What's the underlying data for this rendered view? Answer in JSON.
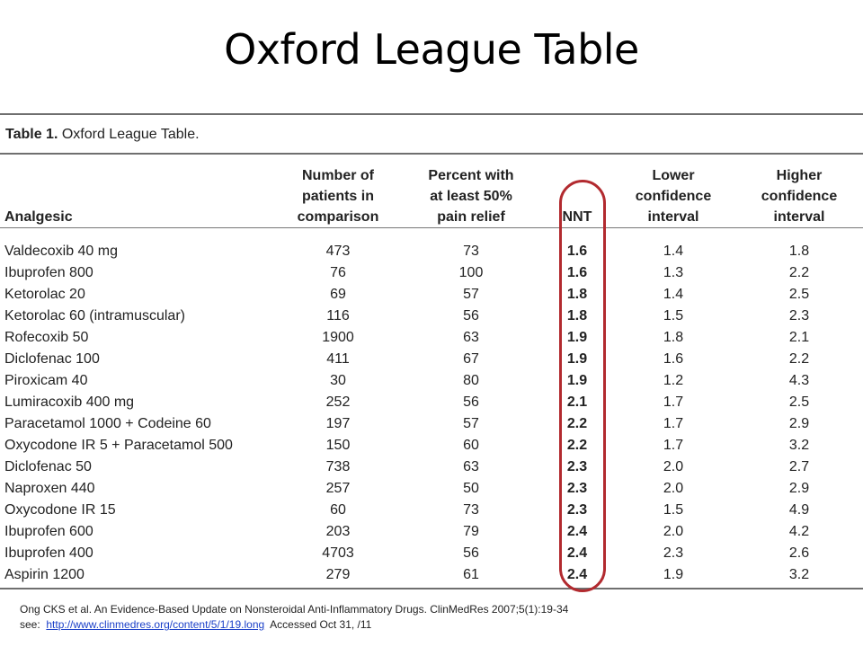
{
  "slide": {
    "title": "Oxford League Table"
  },
  "table": {
    "caption_label": "Table 1.",
    "caption_text": " Oxford League Table.",
    "headers": {
      "analgesic": "Analgesic",
      "patients_line1": "Number of",
      "patients_line2": "patients in",
      "patients_line3": "comparison",
      "percent_line1": "Percent with",
      "percent_line2": "at least 50%",
      "percent_line3": "pain relief",
      "nnt": "NNT",
      "lower_line1": "Lower",
      "lower_line2": "confidence",
      "lower_line3": "interval",
      "higher_line1": "Higher",
      "higher_line2": "confidence",
      "higher_line3": "interval"
    },
    "rows": [
      {
        "analgesic": "Valdecoxib 40 mg",
        "patients": "473",
        "percent": "73",
        "nnt": "1.6",
        "lower": "1.4",
        "higher": "1.8"
      },
      {
        "analgesic": "Ibuprofen 800",
        "patients": "76",
        "percent": "100",
        "nnt": "1.6",
        "lower": "1.3",
        "higher": "2.2"
      },
      {
        "analgesic": "Ketorolac 20",
        "patients": "69",
        "percent": "57",
        "nnt": "1.8",
        "lower": "1.4",
        "higher": "2.5"
      },
      {
        "analgesic": "Ketorolac 60 (intramuscular)",
        "patients": "116",
        "percent": "56",
        "nnt": "1.8",
        "lower": "1.5",
        "higher": "2.3"
      },
      {
        "analgesic": "Rofecoxib 50",
        "patients": "1900",
        "percent": "63",
        "nnt": "1.9",
        "lower": "1.8",
        "higher": "2.1"
      },
      {
        "analgesic": "Diclofenac 100",
        "patients": "411",
        "percent": "67",
        "nnt": "1.9",
        "lower": "1.6",
        "higher": "2.2"
      },
      {
        "analgesic": "Piroxicam 40",
        "patients": "30",
        "percent": "80",
        "nnt": "1.9",
        "lower": "1.2",
        "higher": "4.3"
      },
      {
        "analgesic": "Lumiracoxib 400 mg",
        "patients": "252",
        "percent": "56",
        "nnt": "2.1",
        "lower": "1.7",
        "higher": "2.5"
      },
      {
        "analgesic": "Paracetamol 1000 + Codeine 60",
        "patients": "197",
        "percent": "57",
        "nnt": "2.2",
        "lower": "1.7",
        "higher": "2.9"
      },
      {
        "analgesic": "Oxycodone IR 5 + Paracetamol 500",
        "patients": "150",
        "percent": "60",
        "nnt": "2.2",
        "lower": "1.7",
        "higher": "3.2"
      },
      {
        "analgesic": "Diclofenac 50",
        "patients": "738",
        "percent": "63",
        "nnt": "2.3",
        "lower": "2.0",
        "higher": "2.7"
      },
      {
        "analgesic": "Naproxen 440",
        "patients": "257",
        "percent": "50",
        "nnt": "2.3",
        "lower": "2.0",
        "higher": "2.9"
      },
      {
        "analgesic": "Oxycodone IR 15",
        "patients": "60",
        "percent": "73",
        "nnt": "2.3",
        "lower": "1.5",
        "higher": "4.9"
      },
      {
        "analgesic": "Ibuprofen 600",
        "patients": "203",
        "percent": "79",
        "nnt": "2.4",
        "lower": "2.0",
        "higher": "4.2"
      },
      {
        "analgesic": "Ibuprofen 400",
        "patients": "4703",
        "percent": "56",
        "nnt": "2.4",
        "lower": "2.3",
        "higher": "2.6"
      },
      {
        "analgesic": "Aspirin 1200",
        "patients": "279",
        "percent": "61",
        "nnt": "2.4",
        "lower": "1.9",
        "higher": "3.2"
      }
    ]
  },
  "highlight": {
    "color": "#b22a2f"
  },
  "citation": {
    "line1": "Ong CKS et al.  An Evidence-Based Update on Nonsteroidal Anti-Inflammatory Drugs. ClinMedRes 2007;5(1):19-34",
    "see_prefix": "see:  ",
    "link_text": "http://www.clinmedres.org/content/5/1/19.long",
    "suffix": "  Accessed Oct 31, /11"
  }
}
